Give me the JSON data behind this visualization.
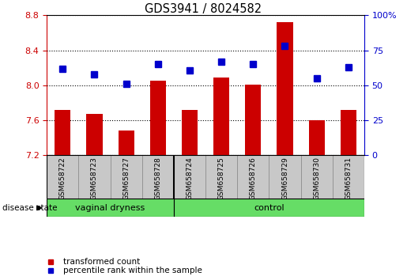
{
  "title": "GDS3941 / 8024582",
  "samples": [
    "GSM658722",
    "GSM658723",
    "GSM658727",
    "GSM658728",
    "GSM658724",
    "GSM658725",
    "GSM658726",
    "GSM658729",
    "GSM658730",
    "GSM658731"
  ],
  "bar_values": [
    7.72,
    7.67,
    7.48,
    8.05,
    7.72,
    8.09,
    8.01,
    8.72,
    7.6,
    7.72
  ],
  "percentile_values": [
    62,
    58,
    51,
    65,
    61,
    67,
    65,
    78,
    55,
    63
  ],
  "bar_color": "#cc0000",
  "percentile_color": "#0000cc",
  "ylim_left": [
    7.2,
    8.8
  ],
  "ylim_right": [
    0,
    100
  ],
  "yticks_left": [
    7.2,
    7.6,
    8.0,
    8.4,
    8.8
  ],
  "yticks_right": [
    0,
    25,
    50,
    75,
    100
  ],
  "ytick_labels_right": [
    "0",
    "25",
    "50",
    "75",
    "100%"
  ],
  "groups": [
    {
      "label": "vaginal dryness",
      "start": 0,
      "end": 4
    },
    {
      "label": "control",
      "start": 4,
      "end": 10
    }
  ],
  "green_color": "#66dd66",
  "disease_state_label": "disease state",
  "legend_items": [
    {
      "label": "transformed count",
      "color": "#cc0000"
    },
    {
      "label": "percentile rank within the sample",
      "color": "#0000cc"
    }
  ],
  "background_color": "#ffffff",
  "xlabel_bg_color": "#c8c8c8"
}
